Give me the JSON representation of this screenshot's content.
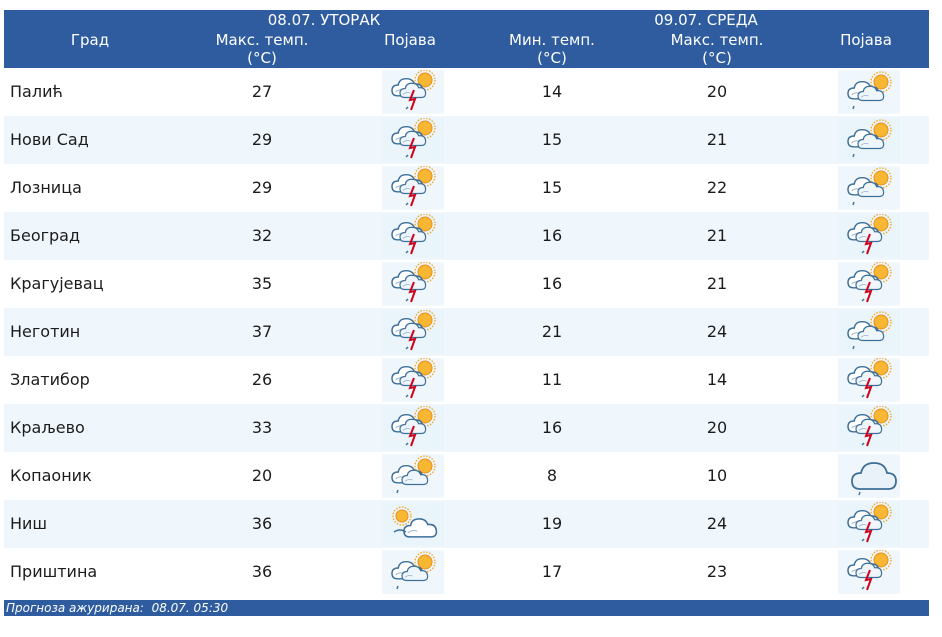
{
  "header": {
    "city": "Град",
    "day1": "08.07. УТОРАК",
    "day2": "09.07. СРЕДА",
    "max_temp_line1": "Макс. темп.",
    "min_temp_line1": "Мин. темп.",
    "unit": "(°C)",
    "phenomenon": "Појава"
  },
  "rows": [
    {
      "city": "Палић",
      "d1_max": "27",
      "d1_icon": "storm-sun-icon",
      "d2_min": "14",
      "d2_max": "20",
      "d2_icon": "cloudy-sun-icon"
    },
    {
      "city": "Нови Сад",
      "d1_max": "29",
      "d1_icon": "storm-sun-icon",
      "d2_min": "15",
      "d2_max": "21",
      "d2_icon": "cloudy-sun-icon"
    },
    {
      "city": "Лозница",
      "d1_max": "29",
      "d1_icon": "storm-sun-icon",
      "d2_min": "15",
      "d2_max": "22",
      "d2_icon": "cloudy-sun-icon"
    },
    {
      "city": "Београд",
      "d1_max": "32",
      "d1_icon": "storm-sun-icon",
      "d2_min": "16",
      "d2_max": "21",
      "d2_icon": "storm-sun-icon"
    },
    {
      "city": "Крагујевац",
      "d1_max": "35",
      "d1_icon": "storm-sun-icon",
      "d2_min": "16",
      "d2_max": "21",
      "d2_icon": "storm-sun-icon"
    },
    {
      "city": "Неготин",
      "d1_max": "37",
      "d1_icon": "storm-sun-icon",
      "d2_min": "21",
      "d2_max": "24",
      "d2_icon": "cloudy-sun-icon"
    },
    {
      "city": "Златибор",
      "d1_max": "26",
      "d1_icon": "storm-sun-icon",
      "d2_min": "11",
      "d2_max": "14",
      "d2_icon": "storm-sun-icon"
    },
    {
      "city": "Краљево",
      "d1_max": "33",
      "d1_icon": "storm-sun-icon",
      "d2_min": "16",
      "d2_max": "20",
      "d2_icon": "storm-sun-icon"
    },
    {
      "city": "Копаоник",
      "d1_max": "20",
      "d1_icon": "cloudy-sun-icon",
      "d2_min": "8",
      "d2_max": "10",
      "d2_icon": "cloud-icon"
    },
    {
      "city": "Ниш",
      "d1_max": "36",
      "d1_icon": "partly-cloudy-icon",
      "d2_min": "19",
      "d2_max": "24",
      "d2_icon": "storm-sun-icon"
    },
    {
      "city": "Приштина",
      "d1_max": "36",
      "d1_icon": "cloudy-sun-icon",
      "d2_min": "17",
      "d2_max": "23",
      "d2_icon": "storm-sun-icon"
    }
  ],
  "footer": {
    "label": "Прогноза ажурирана:",
    "timestamp": "08.07. 05:30"
  },
  "colors": {
    "header_bg": "#2e5c9f",
    "row_alt_bg": "#f0f7fc",
    "sun": "#f5a623",
    "cloud": "#4a7da8",
    "lightning": "#d0021b"
  }
}
